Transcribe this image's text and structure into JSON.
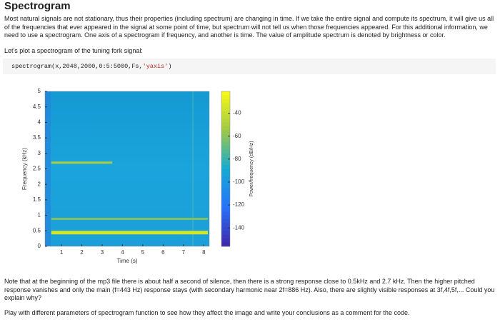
{
  "header": {
    "title": "Spectrogram"
  },
  "intro": [
    "Most natural signals are not stationary, thus their properties (including spectrum) are changing in time. If we take the entire signal and compute its spectrum, it will give us all of the frequencies that ever appeared in the signal at some point of time, but spectrum will not tell us when those frequencies appeared. For this additional information, we need to use a spectrogram. One axis of a spectrogram if frequency, and another is time. The value of amplitude spectrum is denoted by brightness or color.",
    "Let's plot a spectrogram of the tuning fork signal:"
  ],
  "code": {
    "call": "spectrogram(x,2048,2000,0:5:5000,Fs,",
    "string": "'yaxis'",
    "close": ")"
  },
  "chart_data": {
    "type": "spectrogram",
    "x_label": "Time (s)",
    "y_label": "Frequency (kHz)",
    "colorbar_label": "Power/frequency (dB/Hz)",
    "xlim": [
      0.19,
      8.27
    ],
    "xticks": [
      1,
      2,
      3,
      4,
      5,
      6,
      7,
      8
    ],
    "ylim": [
      0,
      5
    ],
    "yticks": [
      0,
      0.5,
      1,
      1.5,
      2,
      2.5,
      3,
      3.5,
      4,
      4.5,
      5
    ],
    "clim": [
      -156,
      -21
    ],
    "cticks": [
      -40,
      -60,
      -80,
      -100,
      -120,
      -140
    ],
    "bands": [
      {
        "frequency": 0.443,
        "start": 0.5,
        "end": 8.2,
        "power": -35
      },
      {
        "frequency": 0.886,
        "start": 0.5,
        "end": 8.2,
        "power": -62
      },
      {
        "frequency": 2.7,
        "start": 0.5,
        "end": 3.5,
        "power": -50
      }
    ]
  },
  "outro": [
    "Note that at the beginning of the mp3 file there is about half a second of silence, then there is a strong response close to 0.5kHz and 2.7 kHz. Then the higher pitched response vanishes and only the main (f=443 Hz) response stays (with secondary harmonic near 2f=886 Hz). Also, there are slightly visible responses at 3f,4f,5f,... Could you explain why?",
    "Play with different parameters of spectrogram function to see how they affect the image and write your conclusions as a comment for the code."
  ]
}
